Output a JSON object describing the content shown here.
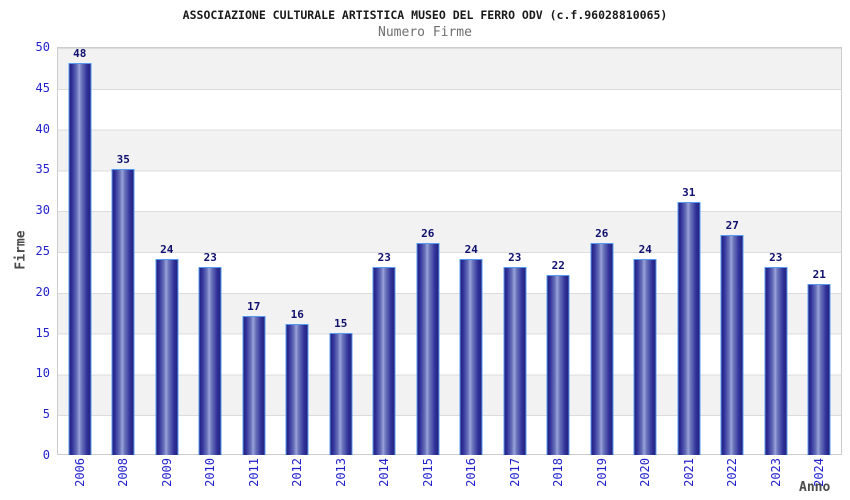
{
  "header": {
    "title": "ASSOCIAZIONE CULTURALE ARTISTICA MUSEO DEL FERRO ODV (c.f.96028810065)",
    "subtitle": "Numero Firme"
  },
  "chart_data": {
    "type": "bar",
    "title": "Numero Firme",
    "categories": [
      "2006",
      "2008",
      "2009",
      "2010",
      "2011",
      "2012",
      "2013",
      "2014",
      "2015",
      "2016",
      "2017",
      "2018",
      "2019",
      "2020",
      "2021",
      "2022",
      "2023",
      "2024"
    ],
    "values": [
      48,
      35,
      24,
      23,
      17,
      16,
      15,
      23,
      26,
      24,
      23,
      22,
      26,
      24,
      31,
      27,
      23,
      21
    ],
    "xlabel": "Anno",
    "ylabel": "Firme",
    "ylim": [
      0,
      50
    ],
    "ytick_step": 5,
    "grid": "horizontal-bands-every-5",
    "legend": "none"
  },
  "colors": {
    "title_black": "#1a1a1a",
    "subtitle_gray": "#707070",
    "axis_text": "#2222cc",
    "axis_title_gray": "#4a4a4a",
    "value_label": "#10106e",
    "band_gray": "#f2f2f2",
    "band_white": "#ffffff",
    "gridline": "#dcdcdc",
    "plot_border": "#cccccc",
    "bar_border": "#5599ee",
    "bar_dark": "#23237d",
    "bar_light": "#9aa3d9"
  }
}
